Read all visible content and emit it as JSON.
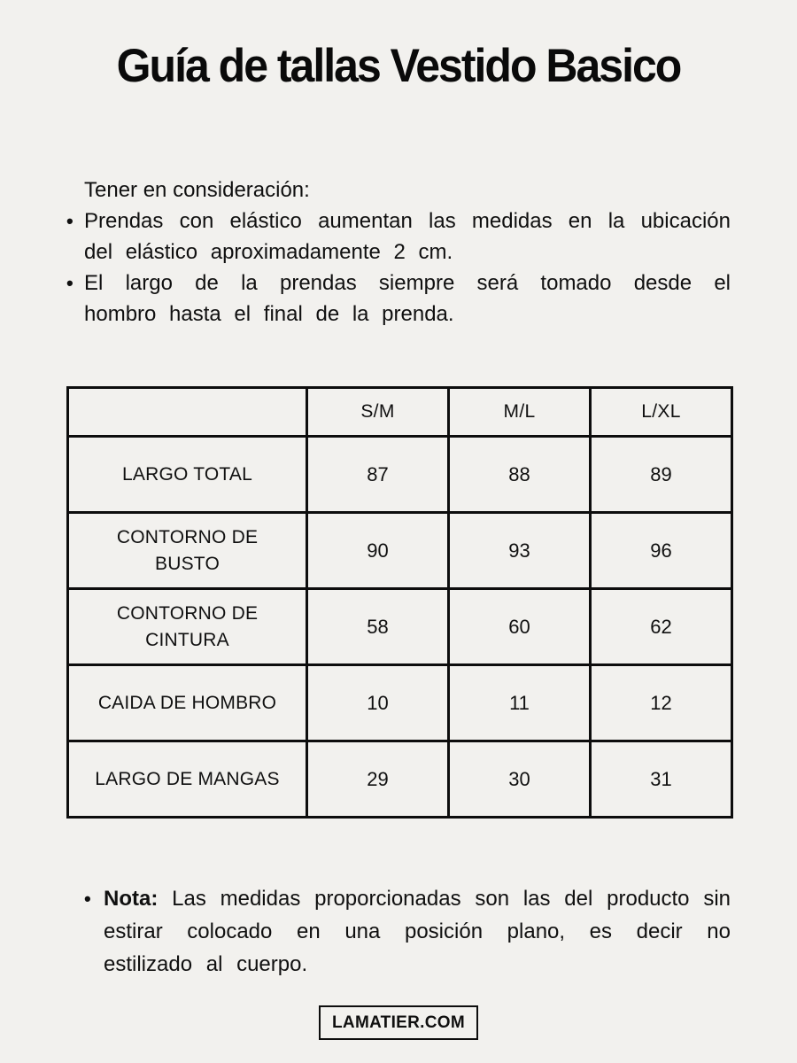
{
  "page": {
    "title": "Guía de tallas Vestido Basico",
    "intro_heading": "Tener en consideración:",
    "bullets": [
      "Prendas con elástico aumentan las medidas en la ubicación del elástico aproximadamente 2 cm.",
      "El largo de la prendas siempre será tomado desde el hombro hasta el final de la prenda."
    ],
    "note_label": "Nota:",
    "note_text": "Las medidas proporcionadas son las del producto sin estirar colocado en una posición plano, es decir no estilizado al cuerpo.",
    "footer_badge": "LAMATIER.COM"
  },
  "table": {
    "columns": [
      "",
      "S/M",
      "M/L",
      "L/XL"
    ],
    "rows": [
      {
        "label": "LARGO TOTAL",
        "values": [
          "87",
          "88",
          "89"
        ]
      },
      {
        "label": "CONTORNO DE BUSTO",
        "values": [
          "90",
          "93",
          "96"
        ]
      },
      {
        "label": "CONTORNO DE CINTURA",
        "values": [
          "58",
          "60",
          "62"
        ]
      },
      {
        "label": "CAIDA DE HOMBRO",
        "values": [
          "10",
          "11",
          "12"
        ]
      },
      {
        "label": "LARGO DE MANGAS",
        "values": [
          "29",
          "30",
          "31"
        ]
      }
    ]
  },
  "colors": {
    "background": "#f2f1ee",
    "text": "#101010",
    "border": "#0d0d0d"
  }
}
